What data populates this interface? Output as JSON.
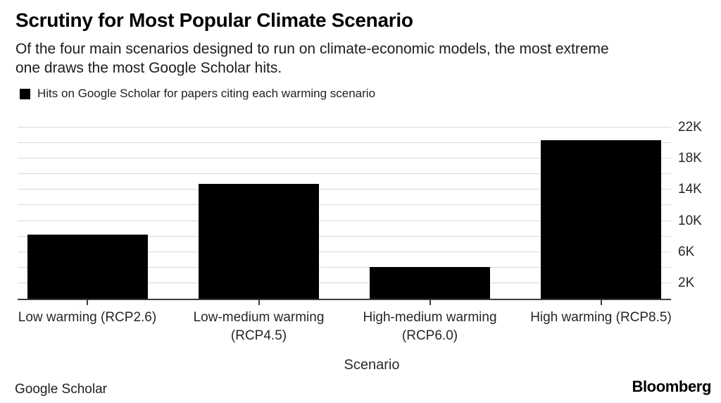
{
  "page": {
    "background": "#ffffff"
  },
  "header": {
    "title": "Scrutiny for Most Popular Climate Scenario",
    "subtitle_lines": [
      "Of the four main scenarios designed to run on climate-economic models, the most extreme",
      "one draws the most Google Scholar hits."
    ]
  },
  "legend": {
    "label": "Hits on Google Scholar for papers citing each warming scenario",
    "swatch_color": "#000000"
  },
  "chart_data": {
    "type": "bar",
    "title": "Scrutiny for Most Popular Climate Scenario",
    "subtitle": "Of the four main scenarios designed to run on climate-economic models, the most extreme one draws the most Google Scholar hits.",
    "legend_label": "Hits on Google Scholar for papers citing each warming scenario",
    "legend_position": "top-left",
    "categories": [
      "Low warming (RCP2.6)",
      "Low-medium warming (RCP4.5)",
      "High-medium warming (RCP6.0)",
      "High warming (RCP8.5)"
    ],
    "values": [
      8200,
      14800,
      4100,
      20400
    ],
    "xlabel": "Scenario",
    "ylabel": "",
    "ylim": [
      0,
      22000
    ],
    "yticks": [
      {
        "value": 22000,
        "label": "22K"
      },
      {
        "value": 18000,
        "label": "18K"
      },
      {
        "value": 14000,
        "label": "14K"
      },
      {
        "value": 10000,
        "label": "10K"
      },
      {
        "value": 6000,
        "label": "6K"
      },
      {
        "value": 2000,
        "label": "2K"
      }
    ],
    "gridline_step": 2000,
    "grid": true,
    "bar_color": "#000000",
    "gridline_color": "#d9d9d9",
    "axis_color": "#3c3c3c"
  },
  "footer": {
    "source": "Google Scholar",
    "brand": "Bloomberg"
  }
}
